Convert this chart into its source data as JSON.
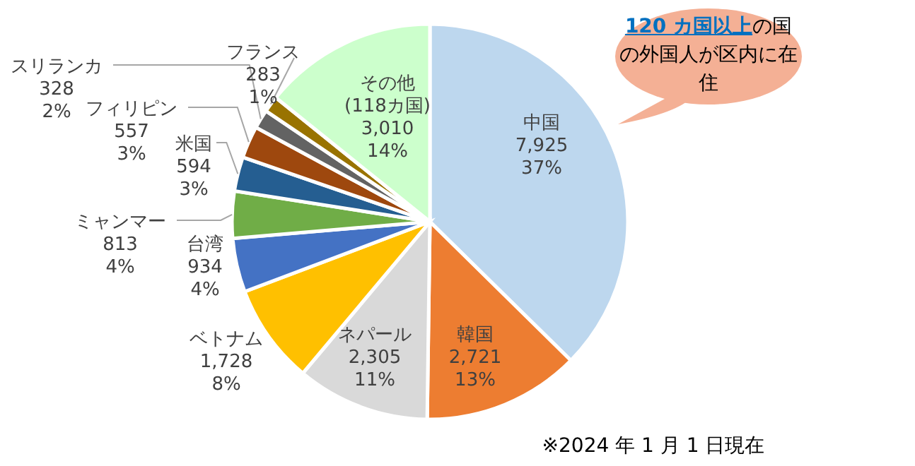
{
  "chart_data": {
    "type": "pie",
    "categories": [
      "中国",
      "韓国",
      "ネパール",
      "ベトナム",
      "台湾",
      "ミャンマー",
      "米国",
      "フィリピン",
      "スリランカ",
      "フランス",
      "その他\n(118カ国)"
    ],
    "values": [
      7925,
      2721,
      2305,
      1728,
      934,
      813,
      594,
      557,
      328,
      283,
      3010
    ],
    "value_labels": [
      "7,925\n37%",
      "2,721\n13%",
      "2,305\n11%",
      "1,728\n8%",
      "934\n4%",
      "813\n4%",
      "594\n3%",
      "557\n3%",
      "328\n2%",
      "283\n1%",
      "3,010\n14%"
    ],
    "colors": [
      "#bdd7ee",
      "#ed7d31",
      "#d9d9d9",
      "#ffc000",
      "#4472c4",
      "#70ad47",
      "#255e91",
      "#9e480e",
      "#636363",
      "#997300",
      "#ccffcc"
    ],
    "annotations": [
      "120 カ国以上",
      "の国の外国人が区内に在住",
      "※2024 年 1 月 1 日現在"
    ]
  }
}
